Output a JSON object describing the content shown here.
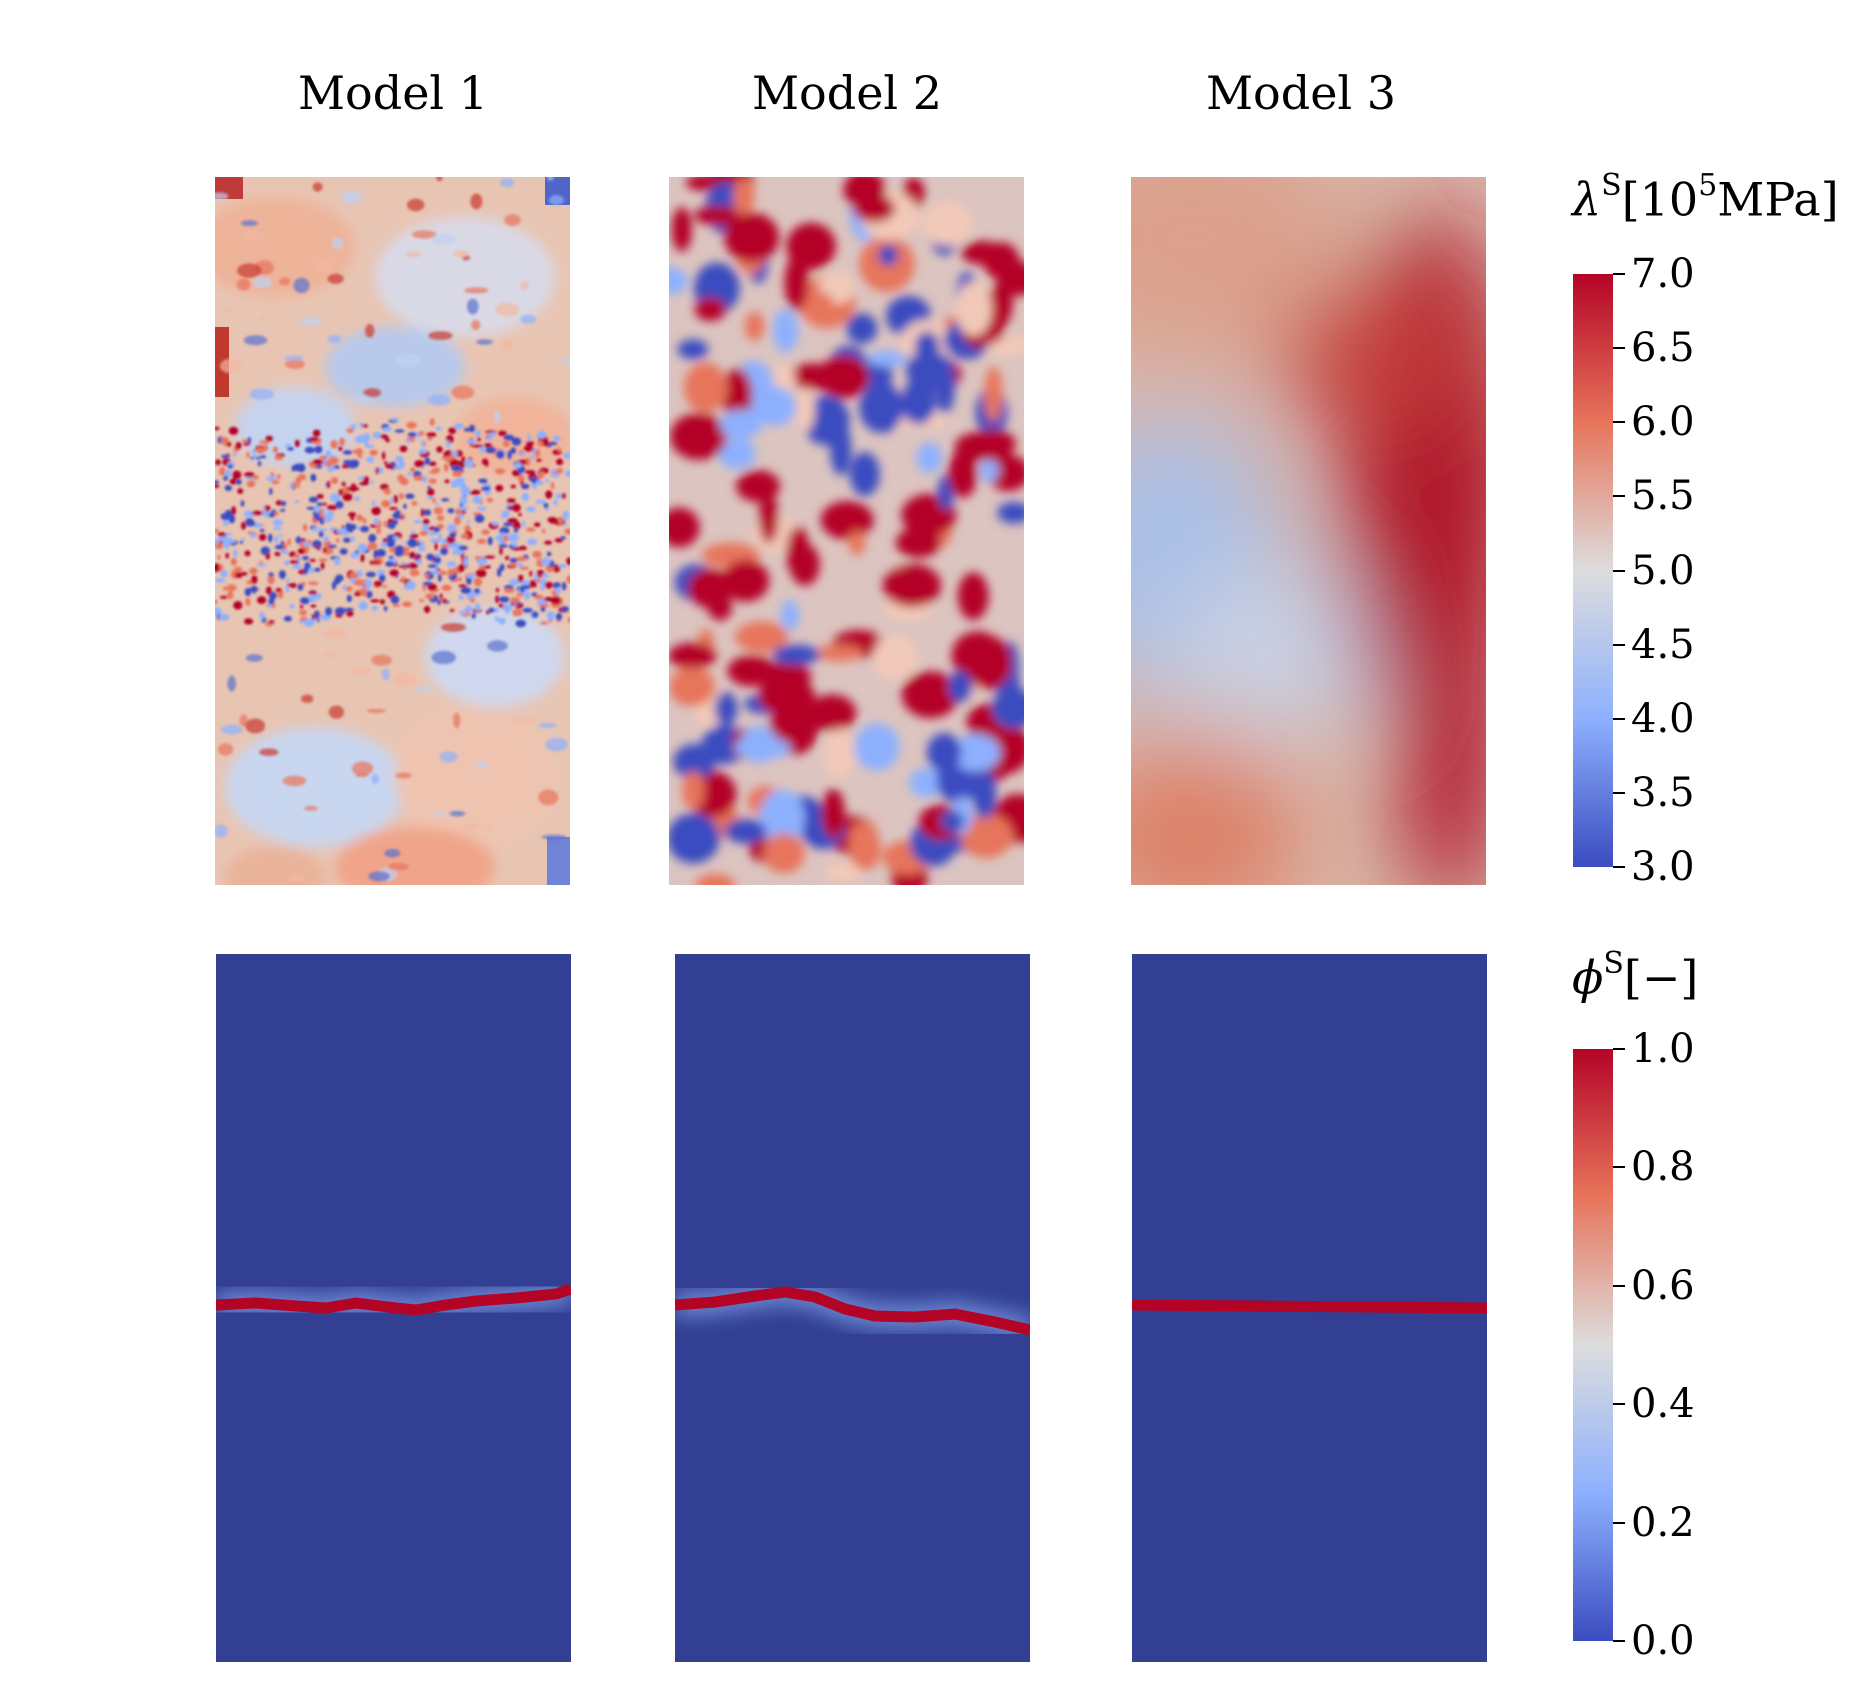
{
  "columns": [
    {
      "title": "Model 1"
    },
    {
      "title": "Model 2"
    },
    {
      "title": "Model 3"
    }
  ],
  "colorbars": {
    "lambda": {
      "symbol": "λ",
      "superscript": "S",
      "unit_prefix": "[10",
      "unit_exp": "5",
      "unit_suffix": "MPa]",
      "ticks": [
        "7.0",
        "6.5",
        "6.0",
        "5.5",
        "5.0",
        "4.5",
        "4.0",
        "3.5",
        "3.0"
      ],
      "min": 3.0,
      "max": 7.0
    },
    "phi": {
      "symbol": "ϕ",
      "superscript": "S",
      "unit": "[−]",
      "ticks": [
        "1.0",
        "0.8",
        "0.6",
        "0.4",
        "0.2",
        "0.0"
      ],
      "min": 0.0,
      "max": 1.0
    }
  },
  "colormap": {
    "low": "#3b4cc0",
    "mid": "#dddddd",
    "high": "#b40426",
    "extreme_high": "#9b0220",
    "background_low": "#323f93"
  }
}
